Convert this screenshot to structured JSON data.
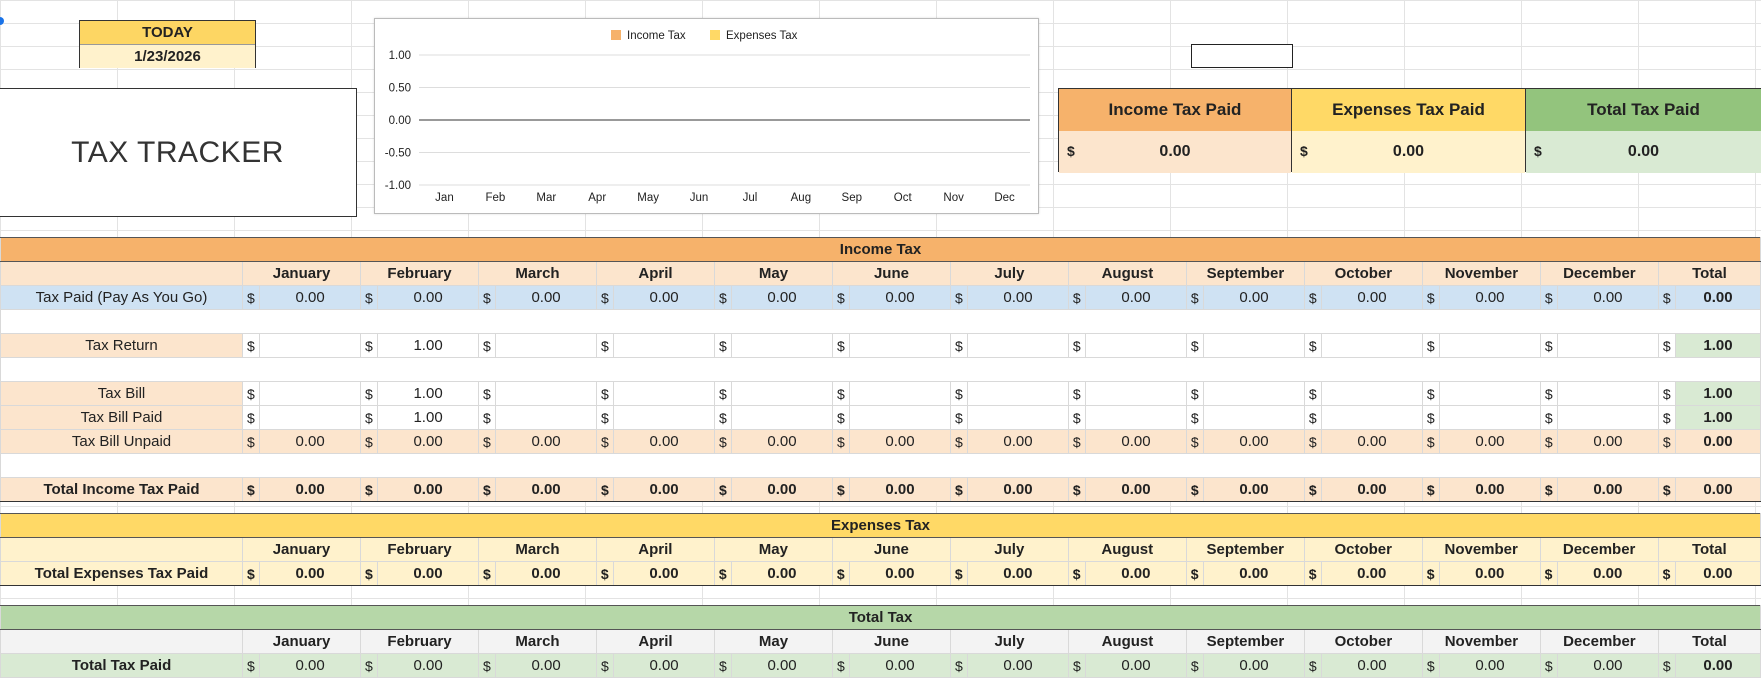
{
  "today": {
    "label": "TODAY",
    "date": "1/23/2026"
  },
  "title": "TAX TRACKER",
  "chart_data": {
    "type": "line",
    "categories": [
      "Jan",
      "Feb",
      "Mar",
      "Apr",
      "May",
      "Jun",
      "Jul",
      "Aug",
      "Sep",
      "Oct",
      "Nov",
      "Dec"
    ],
    "series": [
      {
        "name": "Income Tax",
        "color": "#f6b26b",
        "values": [
          0,
          0,
          0,
          0,
          0,
          0,
          0,
          0,
          0,
          0,
          0,
          0
        ]
      },
      {
        "name": "Expenses Tax",
        "color": "#ffd966",
        "values": [
          0,
          0,
          0,
          0,
          0,
          0,
          0,
          0,
          0,
          0,
          0,
          0
        ]
      }
    ],
    "yticks": [
      "1.00",
      "0.50",
      "0.00",
      "-0.50",
      "-1.00"
    ],
    "ylim": [
      -1,
      1
    ],
    "legend": "top",
    "grid": true
  },
  "kpi": {
    "currency": "$",
    "income": {
      "label": "Income Tax Paid",
      "value": "0.00"
    },
    "expenses": {
      "label": "Expenses Tax Paid",
      "value": "0.00"
    },
    "total": {
      "label": "Total Tax Paid",
      "value": "0.00"
    }
  },
  "months": [
    "January",
    "February",
    "March",
    "April",
    "May",
    "June",
    "July",
    "August",
    "September",
    "October",
    "November",
    "December",
    "Total"
  ],
  "currency": "$",
  "income_table": {
    "title": "Income Tax",
    "rows": [
      {
        "label": "Tax Paid (Pay As You Go)",
        "values": [
          "0.00",
          "0.00",
          "0.00",
          "0.00",
          "0.00",
          "0.00",
          "0.00",
          "0.00",
          "0.00",
          "0.00",
          "0.00",
          "0.00"
        ],
        "total": "0.00"
      },
      {
        "label": "Tax Return",
        "values": [
          "",
          "1.00",
          "",
          "",
          "",
          "",
          "",
          "",
          "",
          "",
          "",
          ""
        ],
        "total": "1.00"
      },
      {
        "label": "Tax Bill",
        "values": [
          "",
          "1.00",
          "",
          "",
          "",
          "",
          "",
          "",
          "",
          "",
          "",
          ""
        ],
        "total": "1.00"
      },
      {
        "label": "Tax Bill Paid",
        "values": [
          "",
          "1.00",
          "",
          "",
          "",
          "",
          "",
          "",
          "",
          "",
          "",
          ""
        ],
        "total": "1.00"
      },
      {
        "label": "Tax Bill Unpaid",
        "values": [
          "0.00",
          "0.00",
          "0.00",
          "0.00",
          "0.00",
          "0.00",
          "0.00",
          "0.00",
          "0.00",
          "0.00",
          "0.00",
          "0.00"
        ],
        "total": "0.00"
      },
      {
        "label": "Total Income Tax Paid",
        "values": [
          "0.00",
          "0.00",
          "0.00",
          "0.00",
          "0.00",
          "0.00",
          "0.00",
          "0.00",
          "0.00",
          "0.00",
          "0.00",
          "0.00"
        ],
        "total": "0.00"
      }
    ]
  },
  "expenses_table": {
    "title": "Expenses Tax",
    "row": {
      "label": "Total Expenses Tax Paid",
      "values": [
        "0.00",
        "0.00",
        "0.00",
        "0.00",
        "0.00",
        "0.00",
        "0.00",
        "0.00",
        "0.00",
        "0.00",
        "0.00",
        "0.00"
      ],
      "total": "0.00"
    }
  },
  "total_table": {
    "title": "Total Tax",
    "row": {
      "label": "Total Tax Paid",
      "values": [
        "0.00",
        "0.00",
        "0.00",
        "0.00",
        "0.00",
        "0.00",
        "0.00",
        "0.00",
        "0.00",
        "0.00",
        "0.00",
        "0.00"
      ],
      "total": "0.00"
    }
  },
  "colors": {
    "orange": "#f6b26b",
    "orange_light": "#fce5cd",
    "yellow": "#ffd966",
    "yellow_light": "#fff2cc",
    "green": "#93c47d",
    "green_light": "#d9ead3",
    "green_header": "#b6d7a8",
    "blue_light": "#cfe2f3"
  }
}
